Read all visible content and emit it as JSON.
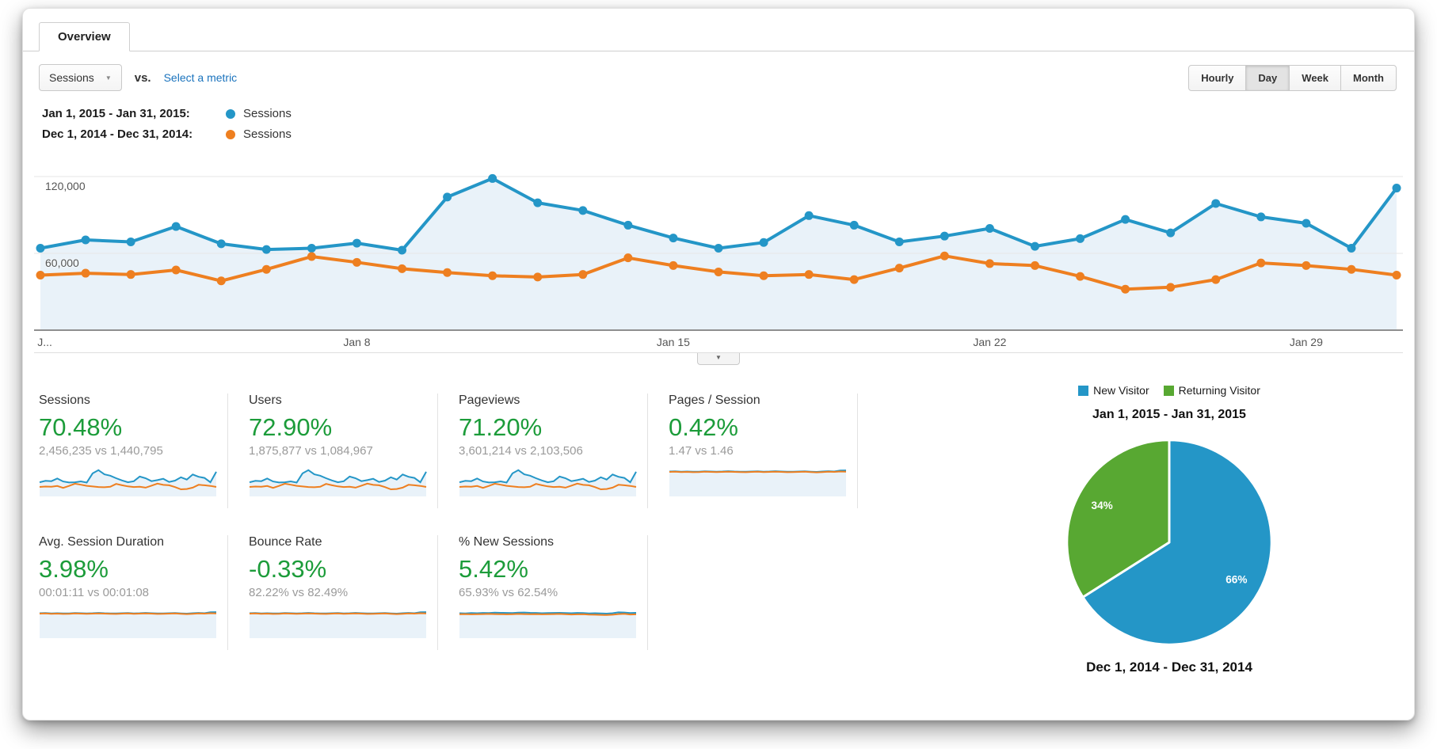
{
  "tab": {
    "label": "Overview"
  },
  "controls": {
    "metric_select": {
      "value": "Sessions",
      "caret": "▼"
    },
    "vs_label": "vs.",
    "select_metric_link": "Select a metric",
    "granularity_options": [
      "Hourly",
      "Day",
      "Week",
      "Month"
    ],
    "active_granularity": "Day"
  },
  "colors": {
    "blue": "#2496c7",
    "orange": "#ee7f20",
    "pie_green": "#58a832",
    "positive_green": "#1c9c3a",
    "link_blue": "#1a73bd",
    "area_fill": "#e9f2f9"
  },
  "legend": [
    {
      "date_range": "Jan 1, 2015 - Jan 31, 2015:",
      "series_label": "Sessions",
      "color": "#2496c7"
    },
    {
      "date_range": "Dec 1, 2014 - Dec 31, 2014:",
      "series_label": "Sessions",
      "color": "#ee7f20"
    }
  ],
  "collapse_handle": {
    "icon": "▼"
  },
  "chart_data": [
    {
      "type": "line",
      "title": "Sessions by day — Jan 1, 2015 - Jan 31, 2015 vs Dec 1, 2014 - Dec 31, 2014",
      "x_tick_labels": [
        "J...",
        "Jan 8",
        "Jan 15",
        "Jan 22",
        "Jan 29"
      ],
      "x_tick_indices": [
        0,
        7,
        14,
        21,
        28
      ],
      "y_ticks": [
        {
          "value": 120000,
          "label": "120,000"
        },
        {
          "value": 60000,
          "label": "60,000"
        }
      ],
      "ylim": [
        0,
        142000
      ],
      "grid": true,
      "markers": true,
      "series": [
        {
          "name": "Sessions (Jan 1, 2015 - Jan 31, 2015)",
          "color": "#2496c7",
          "values": [
            64000,
            70500,
            69000,
            81000,
            67500,
            63000,
            64000,
            68000,
            62500,
            104000,
            118500,
            99500,
            93500,
            82000,
            72000,
            64000,
            68500,
            89500,
            82000,
            69000,
            73500,
            79500,
            65500,
            71500,
            86500,
            76000,
            99000,
            88500,
            83500,
            64000,
            111000
          ]
        },
        {
          "name": "Sessions (Dec 1, 2014 - Dec 31, 2014)",
          "color": "#ee7f20",
          "values": [
            43000,
            44500,
            43500,
            47000,
            38500,
            47500,
            57500,
            53000,
            48000,
            45000,
            42500,
            41500,
            43500,
            56500,
            50500,
            45500,
            42500,
            43500,
            39500,
            48500,
            58000,
            52000,
            50500,
            42000,
            32000,
            33500,
            39500,
            52500,
            50500,
            47500,
            43000
          ]
        }
      ]
    },
    {
      "type": "pie",
      "title": "Jan 1, 2015 - Jan 31, 2015",
      "bottom_label": "Dec 1, 2014 - Dec 31, 2014",
      "legend_position": "top",
      "slices": [
        {
          "label": "New Visitor",
          "value": 66,
          "display": "66%",
          "color": "#2496c7"
        },
        {
          "label": "Returning Visitor",
          "value": 34,
          "display": "34%",
          "color": "#58a832"
        }
      ]
    }
  ],
  "pie_legend": [
    {
      "label": "New Visitor",
      "color": "#2496c7"
    },
    {
      "label": "Returning Visitor",
      "color": "#58a832"
    }
  ],
  "cards": [
    {
      "title": "Sessions",
      "change": "70.48%",
      "comparison": "2,456,235 vs 1,440,795",
      "spark": "sessions"
    },
    {
      "title": "Users",
      "change": "72.90%",
      "comparison": "1,875,877 vs 1,084,967",
      "spark": "sessions"
    },
    {
      "title": "Pageviews",
      "change": "71.20%",
      "comparison": "3,601,214 vs 2,103,506",
      "spark": "sessions"
    },
    {
      "title": "Pages / Session",
      "change": "0.42%",
      "comparison": "1.47 vs 1.46",
      "spark": "flat"
    },
    {
      "title": "Avg. Session Duration",
      "change": "3.98%",
      "comparison": "00:01:11 vs 00:01:08",
      "spark": "flat"
    },
    {
      "title": "Bounce Rate",
      "change": "-0.33%",
      "comparison": "82.22% vs 82.49%",
      "spark": "flat"
    },
    {
      "title": "% New Sessions",
      "change": "5.42%",
      "comparison": "65.93% vs 62.54%",
      "spark": "flat_b"
    }
  ],
  "spark_profiles": {
    "sessions": {
      "use_chart_series": 0,
      "scale_max": 125000
    },
    "flat": {
      "scale_max": 1,
      "blue": [
        0.9,
        0.905,
        0.895,
        0.9,
        0.89,
        0.895,
        0.905,
        0.9,
        0.895,
        0.9,
        0.91,
        0.9,
        0.895,
        0.89,
        0.9,
        0.905,
        0.895,
        0.9,
        0.91,
        0.9,
        0.89,
        0.895,
        0.9,
        0.905,
        0.895,
        0.885,
        0.9,
        0.91,
        0.9,
        0.935,
        0.94
      ],
      "orange": [
        0.885,
        0.89,
        0.88,
        0.885,
        0.875,
        0.88,
        0.89,
        0.885,
        0.88,
        0.885,
        0.89,
        0.885,
        0.88,
        0.875,
        0.885,
        0.89,
        0.88,
        0.885,
        0.89,
        0.885,
        0.875,
        0.88,
        0.885,
        0.89,
        0.88,
        0.87,
        0.88,
        0.89,
        0.885,
        0.9,
        0.895
      ]
    },
    "flat_b": {
      "scale_max": 1,
      "blue": [
        0.9,
        0.895,
        0.905,
        0.9,
        0.91,
        0.905,
        0.92,
        0.915,
        0.91,
        0.905,
        0.92,
        0.925,
        0.915,
        0.91,
        0.9,
        0.905,
        0.91,
        0.915,
        0.905,
        0.9,
        0.91,
        0.905,
        0.895,
        0.9,
        0.895,
        0.885,
        0.9,
        0.93,
        0.925,
        0.905,
        0.915
      ],
      "orange": [
        0.865,
        0.87,
        0.86,
        0.865,
        0.87,
        0.875,
        0.87,
        0.865,
        0.86,
        0.865,
        0.875,
        0.87,
        0.865,
        0.87,
        0.86,
        0.865,
        0.87,
        0.875,
        0.865,
        0.855,
        0.86,
        0.865,
        0.85,
        0.845,
        0.84,
        0.835,
        0.845,
        0.87,
        0.88,
        0.855,
        0.86
      ]
    }
  }
}
